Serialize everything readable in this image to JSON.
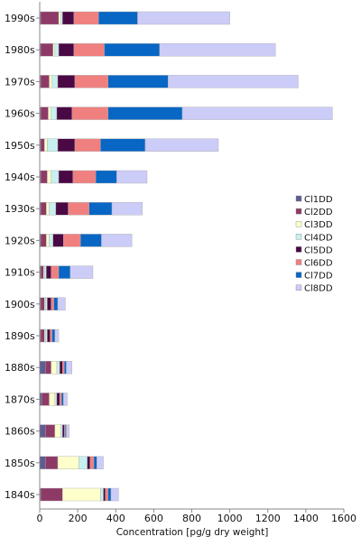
{
  "chart_data": {
    "type": "bar",
    "orientation": "horizontal",
    "stacked": true,
    "title": "",
    "xlabel": "Concentration [pg/g dry weight]",
    "ylabel": "",
    "xlim": [
      0,
      1600
    ],
    "xticks": [
      0,
      200,
      400,
      600,
      800,
      1000,
      1200,
      1400,
      1600
    ],
    "grid": false,
    "legend_position": "right",
    "categories": [
      "1990s",
      "1980s",
      "1970s",
      "1960s",
      "1950s",
      "1940s",
      "1930s",
      "1920s",
      "1910s",
      "1900s",
      "1890s",
      "1880s",
      "1870s",
      "1860s",
      "1850s",
      "1840s"
    ],
    "series": [
      {
        "name": "Cl1DD",
        "color": "#5d5d93",
        "values": [
          5,
          5,
          5,
          5,
          5,
          5,
          5,
          5,
          5,
          5,
          5,
          30,
          10,
          30,
          30,
          5
        ]
      },
      {
        "name": "Cl2DD",
        "color": "#8e3a66",
        "values": [
          95,
          65,
          45,
          40,
          20,
          35,
          30,
          30,
          15,
          20,
          20,
          30,
          40,
          50,
          65,
          115
        ]
      },
      {
        "name": "Cl3DD",
        "color": "#ffffcc",
        "values": [
          10,
          10,
          15,
          15,
          15,
          20,
          15,
          15,
          5,
          5,
          5,
          30,
          30,
          30,
          110,
          200
        ]
      },
      {
        "name": "Cl4DD",
        "color": "#c8f0f0",
        "values": [
          10,
          20,
          30,
          30,
          55,
          40,
          35,
          20,
          10,
          10,
          10,
          15,
          10,
          10,
          45,
          15
        ]
      },
      {
        "name": "Cl5DD",
        "color": "#4a0844",
        "values": [
          60,
          80,
          90,
          80,
          90,
          75,
          65,
          55,
          25,
          20,
          15,
          15,
          15,
          10,
          15,
          10
        ]
      },
      {
        "name": "Cl6DD",
        "color": "#f08080",
        "values": [
          130,
          160,
          175,
          190,
          135,
          120,
          110,
          90,
          40,
          15,
          10,
          10,
          10,
          5,
          20,
          15
        ]
      },
      {
        "name": "Cl7DD",
        "color": "#0866c4",
        "values": [
          205,
          290,
          315,
          390,
          235,
          110,
          120,
          110,
          60,
          20,
          15,
          10,
          10,
          5,
          15,
          15
        ]
      },
      {
        "name": "Cl8DD",
        "color": "#ccccf8",
        "values": [
          485,
          610,
          685,
          790,
          385,
          160,
          160,
          160,
          120,
          40,
          20,
          30,
          20,
          15,
          35,
          40
        ]
      }
    ]
  }
}
